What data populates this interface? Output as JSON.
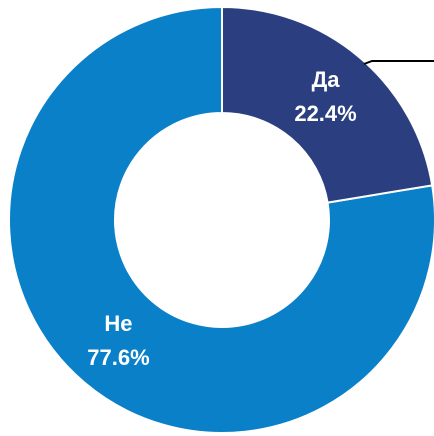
{
  "chart_data": {
    "type": "donut",
    "categories": [
      "Да",
      "Не"
    ],
    "values": [
      22.4,
      77.6
    ],
    "value_labels": [
      "22.4%",
      "77.6%"
    ],
    "colors": [
      "#2b3f80",
      "#0a80c8"
    ]
  }
}
